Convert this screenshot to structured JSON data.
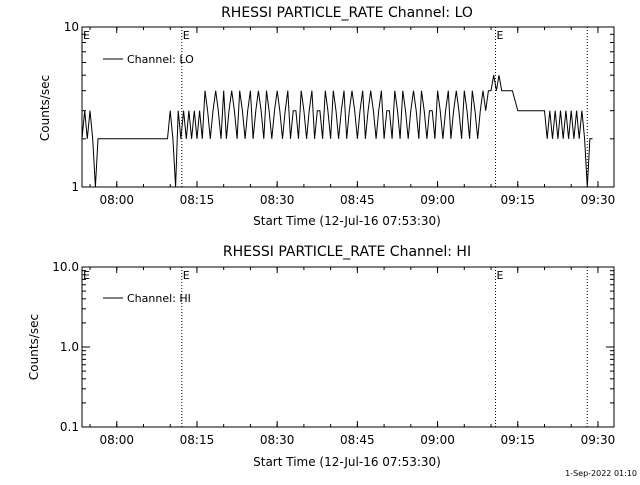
{
  "footer": {
    "timestamp": "1-Sep-2022 01:10"
  },
  "chart_data": [
    {
      "type": "line",
      "title": "RHESSI PARTICLE_RATE Channel: LO",
      "xlabel": "Start Time (12-Jul-16 07:53:30)",
      "ylabel": "Counts/sec",
      "y_scale": "log",
      "xlim": [
        "07:53:30",
        "09:33:00"
      ],
      "ylim": [
        1,
        10
      ],
      "x_ticks": [
        "08:00",
        "08:15",
        "08:30",
        "08:45",
        "09:00",
        "09:15",
        "09:30"
      ],
      "y_ticks": [
        "1",
        "10"
      ],
      "legend": {
        "placement": "top-left",
        "entries": [
          "Channel: LO"
        ]
      },
      "markers": [
        {
          "time": "08:12:10",
          "label": "E"
        },
        {
          "time": "09:10:50",
          "label": "E"
        },
        {
          "time": "09:28:00",
          "label": ""
        }
      ],
      "series": [
        {
          "name": "Channel: LO",
          "x": [
            "07:53:30",
            "07:54:00",
            "07:54:30",
            "07:55:00",
            "07:55:30",
            "07:56:00",
            "07:56:30",
            "07:57:00",
            "07:57:30",
            "07:58:00",
            "07:58:30",
            "07:59:00",
            "08:00:00",
            "08:02:00",
            "08:04:00",
            "08:06:00",
            "08:08:00",
            "08:09:30",
            "08:10:00",
            "08:10:30",
            "08:11:00",
            "08:11:30",
            "08:12:00",
            "08:12:30",
            "08:13:00",
            "08:13:30",
            "08:14:00",
            "08:14:30",
            "08:15:00",
            "08:15:30",
            "08:16:00",
            "08:16:30",
            "08:17:00",
            "08:17:30",
            "08:18:00",
            "08:18:30",
            "08:19:00",
            "08:19:30",
            "08:20:00",
            "08:20:30",
            "08:21:00",
            "08:21:30",
            "08:22:00",
            "08:22:30",
            "08:23:00",
            "08:23:30",
            "08:24:00",
            "08:24:30",
            "08:25:00",
            "08:25:30",
            "08:26:00",
            "08:26:30",
            "08:27:00",
            "08:27:30",
            "08:28:00",
            "08:28:30",
            "08:29:00",
            "08:29:30",
            "08:30:00",
            "08:30:30",
            "08:31:00",
            "08:31:30",
            "08:32:00",
            "08:32:30",
            "08:33:00",
            "08:33:30",
            "08:34:00",
            "08:34:30",
            "08:35:00",
            "08:35:30",
            "08:36:00",
            "08:36:30",
            "08:37:00",
            "08:37:30",
            "08:38:00",
            "08:38:30",
            "08:39:00",
            "08:39:30",
            "08:40:00",
            "08:40:30",
            "08:41:00",
            "08:41:30",
            "08:42:00",
            "08:42:30",
            "08:43:00",
            "08:43:30",
            "08:44:00",
            "08:44:30",
            "08:45:00",
            "08:45:30",
            "08:46:00",
            "08:46:30",
            "08:47:00",
            "08:47:30",
            "08:48:00",
            "08:48:30",
            "08:49:00",
            "08:49:30",
            "08:50:00",
            "08:50:30",
            "08:51:00",
            "08:51:30",
            "08:52:00",
            "08:52:30",
            "08:53:00",
            "08:53:30",
            "08:54:00",
            "08:54:30",
            "08:55:00",
            "08:55:30",
            "08:56:00",
            "08:56:30",
            "08:57:00",
            "08:57:30",
            "08:58:00",
            "08:58:30",
            "08:59:00",
            "08:59:30",
            "09:00:00",
            "09:00:30",
            "09:01:00",
            "09:01:30",
            "09:02:00",
            "09:02:30",
            "09:03:00",
            "09:03:30",
            "09:04:00",
            "09:04:30",
            "09:05:00",
            "09:05:30",
            "09:06:00",
            "09:06:30",
            "09:07:00",
            "09:07:30",
            "09:08:00",
            "09:08:30",
            "09:09:00",
            "09:09:30",
            "09:10:00",
            "09:10:30",
            "09:11:00",
            "09:11:30",
            "09:12:00",
            "09:12:30",
            "09:13:00",
            "09:14:00",
            "09:15:00",
            "09:16:00",
            "09:17:00",
            "09:18:00",
            "09:19:00",
            "09:19:30",
            "09:20:00",
            "09:20:30",
            "09:21:00",
            "09:21:30",
            "09:22:00",
            "09:22:30",
            "09:23:00",
            "09:23:30",
            "09:24:00",
            "09:24:30",
            "09:25:00",
            "09:25:30",
            "09:26:00",
            "09:26:30",
            "09:27:00",
            "09:27:30",
            "09:28:00",
            "09:28:30",
            "09:29:00"
          ],
          "values": [
            2,
            3,
            2,
            3,
            2,
            1,
            2,
            2,
            2,
            2,
            2,
            2,
            2,
            2,
            2,
            2,
            2,
            2,
            3,
            2,
            1,
            3,
            2,
            3,
            2,
            3,
            2,
            3,
            2,
            3,
            2,
            4,
            3,
            2,
            3,
            4,
            3,
            2,
            4,
            2,
            3,
            4,
            3,
            2,
            4,
            3,
            2,
            3,
            4,
            2,
            3,
            4,
            3,
            2,
            4,
            3,
            2,
            3,
            4,
            3,
            2,
            3,
            4,
            2,
            3,
            3,
            2,
            4,
            3,
            2,
            3,
            4,
            2,
            3,
            3,
            2,
            4,
            3,
            2,
            4,
            3,
            2,
            3,
            4,
            2,
            3,
            4,
            3,
            2,
            3,
            4,
            2,
            3,
            4,
            3,
            2,
            3,
            4,
            2,
            3,
            3,
            2,
            4,
            3,
            2,
            4,
            3,
            2,
            3,
            4,
            3,
            2,
            4,
            3,
            2,
            3,
            3,
            2,
            4,
            3,
            2,
            3,
            4,
            2,
            3,
            4,
            3,
            2,
            4,
            3,
            2,
            4,
            3,
            2,
            3,
            4,
            3,
            4,
            4,
            5,
            4,
            5,
            4,
            4,
            4,
            4,
            3,
            3,
            3,
            3,
            3,
            3,
            3,
            2,
            3,
            2,
            3,
            2,
            3,
            2,
            3,
            2,
            3,
            2,
            3,
            2,
            3,
            2,
            1,
            2,
            2
          ]
        }
      ]
    },
    {
      "type": "line",
      "title": "RHESSI PARTICLE_RATE Channel: HI",
      "xlabel": "Start Time (12-Jul-16 07:53:30)",
      "ylabel": "Counts/sec",
      "y_scale": "log",
      "xlim": [
        "07:53:30",
        "09:33:00"
      ],
      "ylim": [
        0.1,
        10
      ],
      "x_ticks": [
        "08:00",
        "08:15",
        "08:30",
        "08:45",
        "09:00",
        "09:15",
        "09:30"
      ],
      "y_ticks": [
        "0.1",
        "1.0",
        "10.0"
      ],
      "legend": {
        "placement": "top-left",
        "entries": [
          "Channel: HI"
        ]
      },
      "markers": [
        {
          "time": "08:12:10",
          "label": "E"
        },
        {
          "time": "09:10:50",
          "label": "E"
        },
        {
          "time": "09:28:00",
          "label": ""
        }
      ],
      "series": [
        {
          "name": "Channel: HI",
          "x": [],
          "values": []
        }
      ]
    }
  ]
}
